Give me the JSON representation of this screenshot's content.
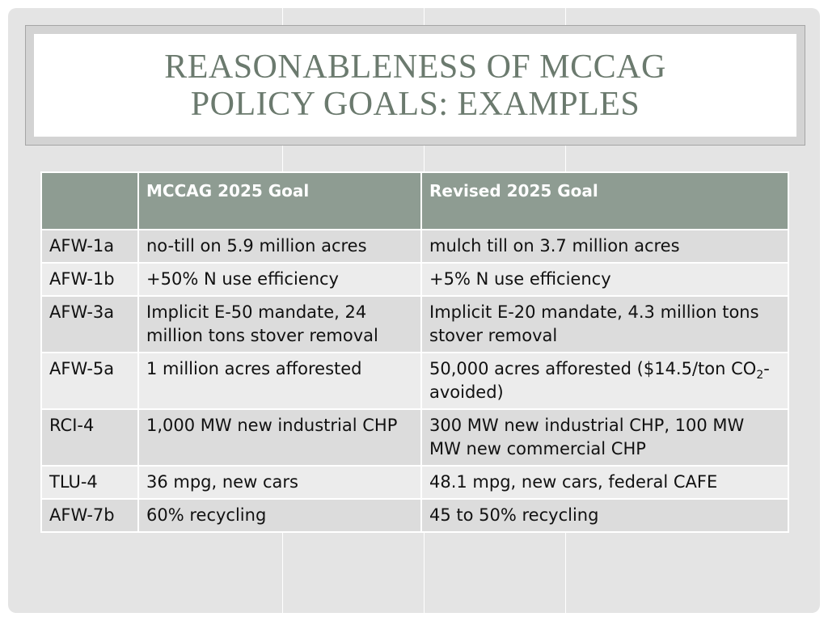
{
  "slide": {
    "title_lines": [
      "Reasonableness of MCCAG",
      "Policy Goals: Examples"
    ]
  },
  "table": {
    "headers": [
      "",
      "MCCAG 2025 Goal",
      "Revised 2025 Goal"
    ],
    "rows": [
      {
        "id": "AFW-1a",
        "mccag": "no-till on 5.9 million acres",
        "revised": "mulch till on 3.7 million acres"
      },
      {
        "id": "AFW-1b",
        "mccag": "+50% N use efficiency",
        "revised": "+5% N use efficiency"
      },
      {
        "id": "AFW-3a",
        "mccag": "Implicit E-50 mandate, 24 million tons stover removal",
        "revised": "Implicit E-20 mandate, 4.3 million tons stover removal"
      },
      {
        "id": "AFW-5a",
        "mccag": "1 million acres afforested",
        "revised_pre": "50,000 acres afforested ($14.5/ton CO",
        "revised_sub": "2",
        "revised_post": "-avoided)"
      },
      {
        "id": "RCI-4",
        "mccag": "1,000 MW new industrial CHP",
        "revised": "300 MW new industrial CHP, 100 MW MW new commercial CHP"
      },
      {
        "id": "TLU-4",
        "mccag": "36 mpg, new cars",
        "revised": "48.1 mpg, new cars, federal CAFE"
      },
      {
        "id": "AFW-7b",
        "mccag": "60% recycling",
        "revised": "45 to 50% recycling"
      }
    ]
  },
  "colors": {
    "title_text": "#6b7a6e",
    "header_bg": "#8e9c92",
    "row_dark": "#dcdcdc",
    "row_light": "#ececec",
    "slide_bg": "#e4e4e4"
  }
}
